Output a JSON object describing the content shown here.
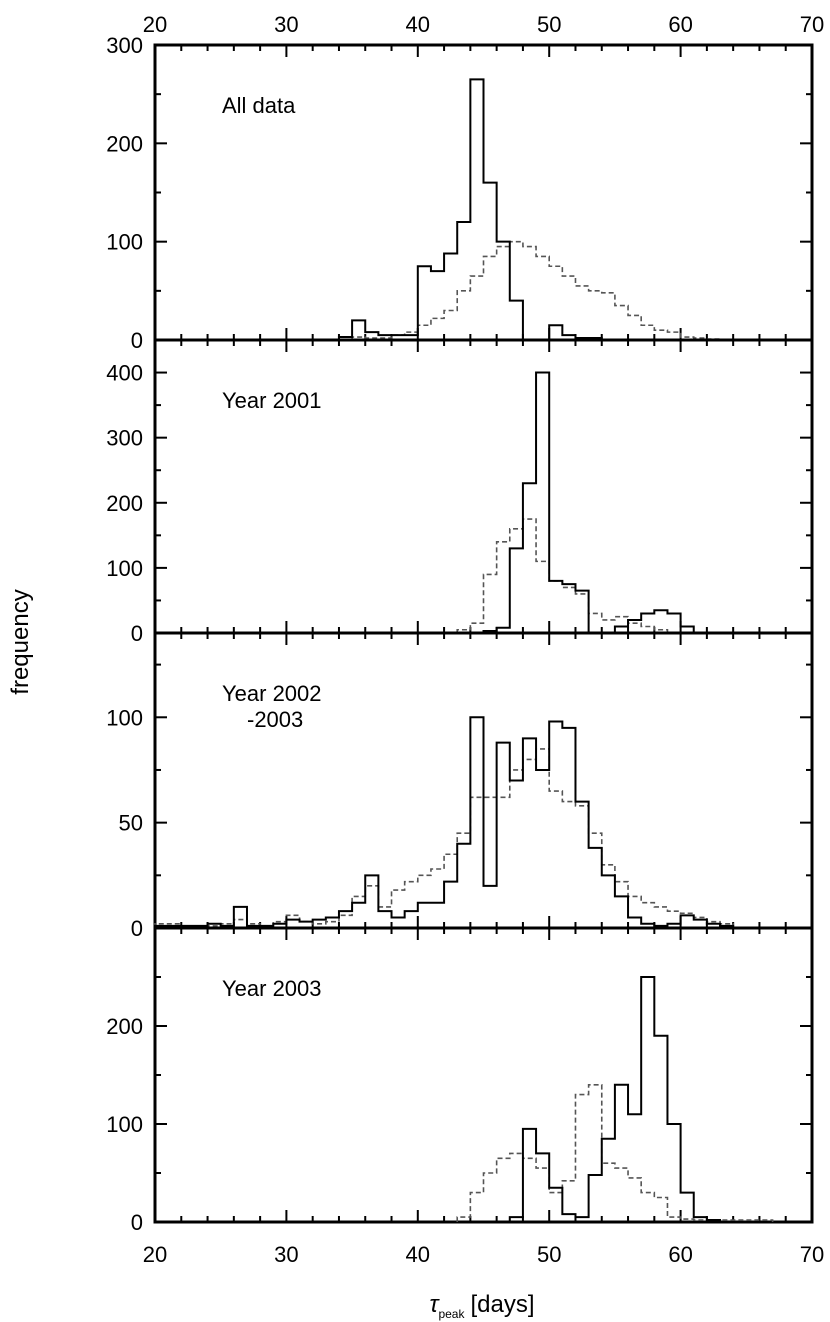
{
  "chart_data": {
    "type": "histogram",
    "xlabel_symbol": "τ",
    "xlabel_sub": "peak",
    "xlabel_unit": "[days]",
    "ylabel": "frequency",
    "xlim": [
      20,
      70
    ],
    "x_ticks": [
      "20",
      "30",
      "40",
      "50",
      "60",
      "70"
    ],
    "bin_width": 1,
    "series_styles": {
      "solid": {
        "color": "#000000",
        "dash": "none"
      },
      "dashed": {
        "color": "#555555",
        "dash": "dashed"
      }
    },
    "panels": [
      {
        "label_lines": [
          "All data"
        ],
        "ylim": [
          0,
          300
        ],
        "y_ticks": [
          0,
          100,
          200,
          300
        ],
        "y_tick_labels": [
          "0",
          "100",
          "200",
          "300"
        ],
        "solid": {
          "x_start": 34,
          "values": [
            3,
            20,
            8,
            5,
            5,
            5,
            75,
            70,
            88,
            120,
            265,
            160,
            100,
            40,
            0,
            0,
            15,
            5,
            2,
            2
          ]
        },
        "dashed": {
          "x_start": 35,
          "values": [
            3,
            2,
            2,
            5,
            8,
            15,
            22,
            30,
            50,
            65,
            85,
            95,
            100,
            95,
            85,
            75,
            65,
            55,
            50,
            48,
            35,
            25,
            15,
            10,
            8,
            3,
            2,
            1
          ]
        }
      },
      {
        "label_lines": [
          "Year 2001"
        ],
        "ylim": [
          0,
          450
        ],
        "y_ticks": [
          0,
          100,
          200,
          300,
          400
        ],
        "y_tick_labels": [
          "0",
          "100",
          "200",
          "300",
          "400"
        ],
        "solid": {
          "x_start": 45,
          "values": [
            3,
            8,
            130,
            230,
            400,
            80,
            75,
            65,
            0,
            0,
            10,
            20,
            30,
            35,
            30,
            10
          ]
        },
        "dashed": {
          "x_start": 43,
          "values": [
            5,
            15,
            90,
            140,
            160,
            175,
            110,
            80,
            70,
            60,
            30,
            20,
            25,
            15,
            10,
            5
          ]
        }
      },
      {
        "label_lines": [
          "Year 2002",
          "-2003"
        ],
        "ylim": [
          0,
          140
        ],
        "y_ticks": [
          0,
          50,
          100
        ],
        "y_tick_labels": [
          "0",
          "50",
          "100"
        ],
        "solid": {
          "x_start": 20,
          "values": [
            1,
            1,
            1,
            1,
            2,
            1,
            10,
            1,
            1,
            2,
            4,
            3,
            4,
            5,
            8,
            12,
            25,
            8,
            5,
            8,
            12,
            12,
            22,
            40,
            100,
            20,
            88,
            70,
            90,
            75,
            98,
            95,
            60,
            38,
            25,
            15,
            5,
            2,
            1,
            2,
            6,
            4,
            2,
            1
          ]
        },
        "dashed": {
          "x_start": 20,
          "values": [
            2,
            2,
            1,
            1,
            1,
            2,
            4,
            2,
            1,
            3,
            6,
            3,
            2,
            3,
            6,
            15,
            20,
            10,
            18,
            22,
            25,
            28,
            35,
            45,
            62,
            62,
            62,
            75,
            80,
            85,
            65,
            60,
            58,
            45,
            30,
            22,
            15,
            12,
            10,
            8,
            7,
            5,
            3,
            2
          ]
        }
      },
      {
        "label_lines": [
          "Year 2003"
        ],
        "ylim": [
          0,
          300
        ],
        "y_ticks": [
          0,
          100,
          200
        ],
        "y_tick_labels": [
          "0",
          "100",
          "200"
        ],
        "solid": {
          "x_start": 47,
          "values": [
            5,
            95,
            70,
            35,
            8,
            5,
            48,
            85,
            140,
            110,
            250,
            190,
            100,
            30,
            5,
            2
          ]
        },
        "dashed": {
          "x_start": 43,
          "values": [
            5,
            30,
            50,
            65,
            70,
            65,
            55,
            30,
            42,
            130,
            140,
            60,
            55,
            45,
            30,
            25,
            5,
            3,
            2,
            2,
            2,
            2,
            2,
            2
          ]
        }
      }
    ]
  }
}
